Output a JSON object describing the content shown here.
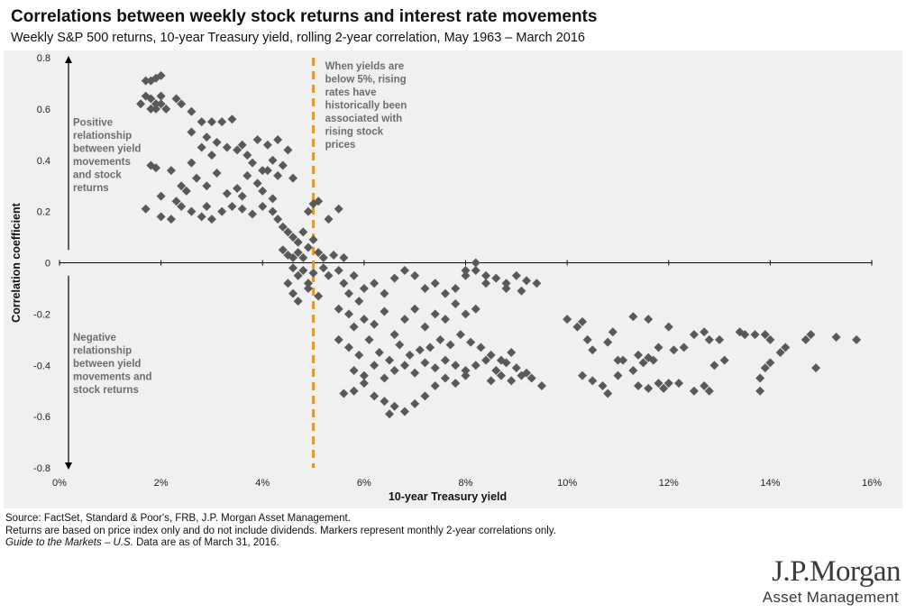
{
  "header": {
    "title": "Correlations between weekly stock returns and interest rate movements",
    "subtitle": "Weekly S&P 500 returns, 10-year Treasury yield, rolling 2-year correlation, May 1963 – March 2016"
  },
  "footer": {
    "line1": "Source: FactSet, Standard & Poor's, FRB, J.P. Morgan Asset Management.",
    "line2": "Returns are based on price index only and do not include dividends. Markers represent monthly 2-year correlations only.",
    "line3_italic": "Guide to the Markets – U.S.",
    "line3_rest": " Data are as of March 31, 2016."
  },
  "logo": {
    "main": "J.P.Morgan",
    "sub": "Asset Management"
  },
  "colors": {
    "marker": "#595959",
    "threshold_line": "#e3962f",
    "panel_bg": "#f0f0f0",
    "annotation": "#6d6d6d"
  },
  "chart_data": {
    "type": "scatter",
    "xlabel": "10-year Treasury yield",
    "ylabel": "Correlation coefficient",
    "xlim": [
      0,
      16
    ],
    "ylim": [
      -0.8,
      0.8
    ],
    "x_tick_labels": [
      "0%",
      "2%",
      "4%",
      "6%",
      "8%",
      "10%",
      "12%",
      "14%",
      "16%"
    ],
    "y_tick_labels": [
      "0.8",
      "0.6",
      "0.4",
      "0.2",
      "0",
      "-0.2",
      "-0.4",
      "-0.6",
      "-0.8"
    ],
    "threshold_x": 5,
    "annotations": {
      "positive": [
        "Positive",
        "relationship",
        "between yield",
        "movements",
        "and stock",
        "returns"
      ],
      "negative": [
        "Negative",
        "relationship",
        "between yield",
        "movements and",
        "stock returns"
      ],
      "threshold": [
        "When yields are",
        "below 5%, rising",
        "rates have",
        "historically been",
        "associated with",
        "rising stock",
        "prices"
      ]
    },
    "points": [
      [
        1.6,
        0.62
      ],
      [
        1.7,
        0.65
      ],
      [
        1.8,
        0.64
      ],
      [
        1.9,
        0.62
      ],
      [
        2.0,
        0.65
      ],
      [
        1.7,
        0.71
      ],
      [
        1.8,
        0.71
      ],
      [
        1.9,
        0.72
      ],
      [
        2.0,
        0.73
      ],
      [
        1.8,
        0.6
      ],
      [
        1.9,
        0.6
      ],
      [
        2.0,
        0.62
      ],
      [
        2.1,
        0.6
      ],
      [
        2.3,
        0.64
      ],
      [
        2.4,
        0.62
      ],
      [
        2.6,
        0.59
      ],
      [
        2.8,
        0.55
      ],
      [
        3.0,
        0.55
      ],
      [
        3.2,
        0.55
      ],
      [
        3.4,
        0.56
      ],
      [
        1.7,
        0.21
      ],
      [
        1.8,
        0.38
      ],
      [
        1.9,
        0.37
      ],
      [
        2.0,
        0.26
      ],
      [
        2.2,
        0.36
      ],
      [
        2.4,
        0.3
      ],
      [
        2.6,
        0.39
      ],
      [
        2.8,
        0.45
      ],
      [
        3.0,
        0.42
      ],
      [
        3.3,
        0.45
      ],
      [
        3.5,
        0.44
      ],
      [
        3.7,
        0.42
      ],
      [
        3.9,
        0.48
      ],
      [
        4.1,
        0.46
      ],
      [
        4.3,
        0.48
      ],
      [
        4.5,
        0.44
      ],
      [
        2.0,
        0.18
      ],
      [
        2.2,
        0.17
      ],
      [
        2.4,
        0.22
      ],
      [
        2.6,
        0.2
      ],
      [
        2.8,
        0.18
      ],
      [
        3.0,
        0.17
      ],
      [
        3.2,
        0.2
      ],
      [
        3.4,
        0.22
      ],
      [
        3.6,
        0.21
      ],
      [
        3.8,
        0.19
      ],
      [
        2.5,
        0.28
      ],
      [
        2.7,
        0.33
      ],
      [
        2.9,
        0.3
      ],
      [
        3.1,
        0.35
      ],
      [
        3.3,
        0.27
      ],
      [
        3.5,
        0.29
      ],
      [
        3.7,
        0.34
      ],
      [
        3.9,
        0.31
      ],
      [
        4.1,
        0.36
      ],
      [
        4.3,
        0.34
      ],
      [
        2.3,
        0.24
      ],
      [
        2.9,
        0.22
      ],
      [
        3.6,
        0.26
      ],
      [
        4.0,
        0.28
      ],
      [
        4.2,
        0.25
      ],
      [
        2.6,
        0.51
      ],
      [
        2.9,
        0.49
      ],
      [
        3.1,
        0.47
      ],
      [
        3.6,
        0.46
      ],
      [
        3.8,
        0.39
      ],
      [
        4.0,
        0.36
      ],
      [
        4.2,
        0.4
      ],
      [
        4.4,
        0.38
      ],
      [
        4.6,
        0.33
      ],
      [
        4.0,
        0.22
      ],
      [
        4.2,
        0.2
      ],
      [
        4.3,
        0.17
      ],
      [
        4.4,
        0.14
      ],
      [
        4.5,
        0.12
      ],
      [
        4.6,
        0.1
      ],
      [
        4.7,
        0.08
      ],
      [
        4.8,
        0.12
      ],
      [
        4.9,
        0.2
      ],
      [
        5.0,
        0.23
      ],
      [
        5.1,
        0.24
      ],
      [
        5.3,
        0.17
      ],
      [
        5.5,
        0.21
      ],
      [
        4.4,
        0.05
      ],
      [
        4.5,
        0.03
      ],
      [
        4.6,
        0.02
      ],
      [
        4.7,
        0.04
      ],
      [
        4.8,
        0.02
      ],
      [
        4.9,
        0.06
      ],
      [
        5.0,
        0.09
      ],
      [
        5.1,
        0.04
      ],
      [
        5.2,
        0.02
      ],
      [
        5.4,
        0.03
      ],
      [
        5.6,
        0.02
      ],
      [
        4.6,
        -0.02
      ],
      [
        4.7,
        -0.05
      ],
      [
        4.8,
        -0.03
      ],
      [
        4.9,
        -0.08
      ],
      [
        5.0,
        -0.04
      ],
      [
        4.5,
        -0.08
      ],
      [
        4.6,
        -0.12
      ],
      [
        4.7,
        -0.15
      ],
      [
        4.9,
        -0.1
      ],
      [
        5.1,
        -0.13
      ],
      [
        5.2,
        -0.02
      ],
      [
        5.3,
        -0.05
      ],
      [
        5.5,
        -0.03
      ],
      [
        5.6,
        -0.08
      ],
      [
        5.7,
        -0.12
      ],
      [
        5.8,
        -0.05
      ],
      [
        5.9,
        -0.15
      ],
      [
        6.0,
        -0.1
      ],
      [
        6.2,
        -0.08
      ],
      [
        6.4,
        -0.12
      ],
      [
        6.6,
        -0.06
      ],
      [
        6.8,
        -0.03
      ],
      [
        7.0,
        -0.05
      ],
      [
        7.2,
        -0.1
      ],
      [
        7.4,
        -0.08
      ],
      [
        7.6,
        -0.12
      ],
      [
        7.8,
        -0.1
      ],
      [
        8.0,
        -0.05
      ],
      [
        8.2,
        -0.03
      ],
      [
        8.4,
        -0.08
      ],
      [
        5.5,
        -0.18
      ],
      [
        5.7,
        -0.2
      ],
      [
        5.8,
        -0.25
      ],
      [
        6.0,
        -0.22
      ],
      [
        6.2,
        -0.24
      ],
      [
        6.4,
        -0.19
      ],
      [
        6.6,
        -0.28
      ],
      [
        6.8,
        -0.22
      ],
      [
        7.0,
        -0.18
      ],
      [
        7.2,
        -0.25
      ],
      [
        7.4,
        -0.2
      ],
      [
        7.6,
        -0.22
      ],
      [
        7.8,
        -0.16
      ],
      [
        8.0,
        -0.2
      ],
      [
        8.2,
        -0.18
      ],
      [
        5.5,
        -0.3
      ],
      [
        5.7,
        -0.33
      ],
      [
        5.9,
        -0.36
      ],
      [
        6.1,
        -0.3
      ],
      [
        6.3,
        -0.35
      ],
      [
        6.5,
        -0.38
      ],
      [
        6.7,
        -0.32
      ],
      [
        6.9,
        -0.36
      ],
      [
        7.1,
        -0.34
      ],
      [
        7.3,
        -0.33
      ],
      [
        7.5,
        -0.3
      ],
      [
        7.7,
        -0.32
      ],
      [
        7.9,
        -0.28
      ],
      [
        8.1,
        -0.31
      ],
      [
        8.3,
        -0.33
      ],
      [
        8.5,
        -0.36
      ],
      [
        8.7,
        -0.38
      ],
      [
        8.9,
        -0.35
      ],
      [
        5.8,
        -0.42
      ],
      [
        6.0,
        -0.44
      ],
      [
        6.2,
        -0.4
      ],
      [
        6.4,
        -0.45
      ],
      [
        6.6,
        -0.42
      ],
      [
        6.8,
        -0.4
      ],
      [
        7.0,
        -0.43
      ],
      [
        7.2,
        -0.39
      ],
      [
        7.4,
        -0.41
      ],
      [
        7.6,
        -0.38
      ],
      [
        7.8,
        -0.4
      ],
      [
        8.0,
        -0.42
      ],
      [
        8.2,
        -0.4
      ],
      [
        8.4,
        -0.38
      ],
      [
        8.6,
        -0.42
      ],
      [
        8.8,
        -0.39
      ],
      [
        9.0,
        -0.41
      ],
      [
        9.2,
        -0.43
      ],
      [
        5.6,
        -0.51
      ],
      [
        5.8,
        -0.5
      ],
      [
        6.0,
        -0.47
      ],
      [
        6.2,
        -0.52
      ],
      [
        6.4,
        -0.54
      ],
      [
        6.6,
        -0.56
      ],
      [
        6.8,
        -0.58
      ],
      [
        7.0,
        -0.55
      ],
      [
        7.2,
        -0.52
      ],
      [
        6.5,
        -0.59
      ],
      [
        7.4,
        -0.48
      ],
      [
        7.6,
        -0.45
      ],
      [
        7.8,
        -0.47
      ],
      [
        8.0,
        -0.44
      ],
      [
        8.5,
        -0.46
      ],
      [
        8.7,
        -0.44
      ],
      [
        8.9,
        -0.46
      ],
      [
        9.1,
        -0.44
      ],
      [
        9.3,
        -0.45
      ],
      [
        9.5,
        -0.48
      ],
      [
        8.4,
        -0.05
      ],
      [
        8.6,
        -0.06
      ],
      [
        8.8,
        -0.08
      ],
      [
        9.0,
        -0.05
      ],
      [
        9.2,
        -0.07
      ],
      [
        9.4,
        -0.08
      ],
      [
        8.8,
        -0.1
      ],
      [
        9.1,
        -0.11
      ],
      [
        8.2,
        0.0
      ],
      [
        8.0,
        -0.03
      ],
      [
        10.0,
        -0.22
      ],
      [
        10.2,
        -0.25
      ],
      [
        10.3,
        -0.23
      ],
      [
        10.4,
        -0.3
      ],
      [
        10.5,
        -0.34
      ],
      [
        10.8,
        -0.31
      ],
      [
        10.9,
        -0.27
      ],
      [
        11.0,
        -0.38
      ],
      [
        11.3,
        -0.21
      ],
      [
        11.6,
        -0.22
      ],
      [
        12.0,
        -0.25
      ],
      [
        11.8,
        -0.33
      ],
      [
        12.1,
        -0.34
      ],
      [
        12.3,
        -0.33
      ],
      [
        12.5,
        -0.28
      ],
      [
        12.7,
        -0.27
      ],
      [
        12.8,
        -0.3
      ],
      [
        13.0,
        -0.3
      ],
      [
        10.3,
        -0.44
      ],
      [
        10.5,
        -0.46
      ],
      [
        10.7,
        -0.48
      ],
      [
        10.8,
        -0.51
      ],
      [
        11.0,
        -0.44
      ],
      [
        11.1,
        -0.38
      ],
      [
        11.3,
        -0.42
      ],
      [
        11.4,
        -0.36
      ],
      [
        11.5,
        -0.39
      ],
      [
        11.6,
        -0.37
      ],
      [
        11.7,
        -0.38
      ],
      [
        11.4,
        -0.48
      ],
      [
        11.6,
        -0.49
      ],
      [
        11.8,
        -0.47
      ],
      [
        11.9,
        -0.49
      ],
      [
        12.0,
        -0.47
      ],
      [
        12.2,
        -0.47
      ],
      [
        12.5,
        -0.5
      ],
      [
        12.7,
        -0.48
      ],
      [
        12.8,
        -0.5
      ],
      [
        12.9,
        -0.4
      ],
      [
        13.1,
        -0.38
      ],
      [
        13.4,
        -0.27
      ],
      [
        13.5,
        -0.28
      ],
      [
        13.7,
        -0.28
      ],
      [
        13.9,
        -0.28
      ],
      [
        14.0,
        -0.3
      ],
      [
        14.2,
        -0.35
      ],
      [
        13.9,
        -0.41
      ],
      [
        14.0,
        -0.39
      ],
      [
        13.8,
        -0.45
      ],
      [
        13.8,
        -0.5
      ],
      [
        14.3,
        -0.33
      ],
      [
        14.7,
        -0.3
      ],
      [
        14.8,
        -0.28
      ],
      [
        14.9,
        -0.41
      ],
      [
        15.3,
        -0.29
      ],
      [
        15.7,
        -0.3
      ]
    ]
  }
}
